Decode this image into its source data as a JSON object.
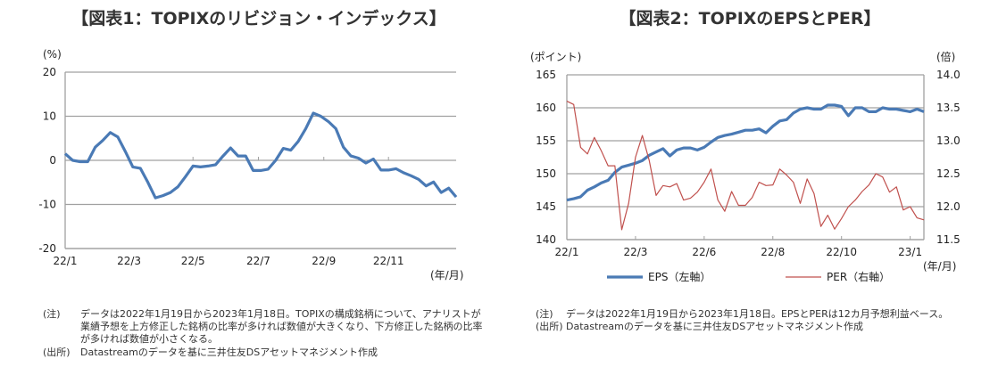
{
  "chart_data": [
    {
      "type": "line",
      "title": "【図表1：TOPIXのリビジョン・インデックス】",
      "ylabel": "(%)",
      "xlabel": "(年/月)",
      "ylim": [
        -20,
        20
      ],
      "yticks": [
        "20",
        "10",
        "0",
        "-10",
        "-20"
      ],
      "xtick_labels": [
        {
          "label": "22/1",
          "index": 0
        },
        {
          "label": "22/3",
          "index": 8.5
        },
        {
          "label": "22/5",
          "index": 17
        },
        {
          "label": "22/7",
          "index": 25.7
        },
        {
          "label": "22/9",
          "index": 34.4
        },
        {
          "label": "22/11",
          "index": 43
        }
      ],
      "grid": true,
      "series": [
        {
          "name": "リビジョン・インデックス",
          "color": "#4a7ab5",
          "values": [
            1.5,
            0,
            -0.3,
            -0.3,
            3,
            4.5,
            6.3,
            5.3,
            2,
            -1.5,
            -1.8,
            -5,
            -8.5,
            -8,
            -7.3,
            -6,
            -3.7,
            -1.3,
            -1.5,
            -1.3,
            -1,
            1,
            2.8,
            1,
            1,
            -2.3,
            -2.3,
            -2,
            0,
            2.7,
            2.3,
            4.3,
            7.2,
            10.7,
            10,
            8.8,
            7.2,
            3,
            1,
            0.5,
            -0.6,
            0.3,
            -2.2,
            -2.2,
            -1.9,
            -2.8,
            -3.5,
            -4.3,
            -5.8,
            -4.9,
            -7.3,
            -6.3,
            -8.3
          ]
        }
      ]
    },
    {
      "type": "line",
      "title": "【図表2：TOPIXのEPSとPER】",
      "ylabel": "(ポイント)",
      "y2label": "(倍)",
      "xlabel": "(年/月)",
      "ylim": [
        140,
        165
      ],
      "y2lim": [
        11.5,
        14.0
      ],
      "yticks": [
        "165",
        "160",
        "155",
        "150",
        "145",
        "140"
      ],
      "y2ticks": [
        "14.0",
        "13.5",
        "13.0",
        "12.5",
        "12.0",
        "11.5"
      ],
      "xtick_labels": [
        {
          "label": "22/1",
          "index": 0
        },
        {
          "label": "22/3",
          "index": 10
        },
        {
          "label": "22/6",
          "index": 20
        },
        {
          "label": "22/8",
          "index": 30
        },
        {
          "label": "22/10",
          "index": 40
        },
        {
          "label": "23/1",
          "index": 50
        }
      ],
      "grid": true,
      "legend_position": "bottom",
      "series": [
        {
          "name": "EPS（左軸）",
          "axis": "left",
          "color": "#4a7ab5",
          "values": [
            146,
            146.2,
            146.5,
            147.5,
            148,
            148.6,
            149,
            150.2,
            151,
            151.3,
            151.6,
            152,
            152.8,
            153.3,
            153.8,
            152.7,
            153.6,
            153.9,
            153.9,
            153.6,
            154,
            154.8,
            155.5,
            155.8,
            156,
            156.3,
            156.6,
            156.6,
            156.8,
            156.2,
            157.2,
            158,
            158.2,
            159.2,
            159.8,
            160,
            159.8,
            159.8,
            160.4,
            160.4,
            160.2,
            158.8,
            160,
            160,
            159.4,
            159.4,
            160,
            159.8,
            159.8,
            159.6,
            159.4,
            159.8,
            159.4
          ]
        },
        {
          "name": "PER（右軸）",
          "axis": "right",
          "color": "#c0504d",
          "values": [
            13.6,
            13.55,
            12.9,
            12.8,
            13.05,
            12.85,
            12.62,
            12.62,
            11.65,
            12.05,
            12.75,
            13.08,
            12.7,
            12.17,
            12.32,
            12.3,
            12.35,
            12.1,
            12.13,
            12.22,
            12.37,
            12.57,
            12.1,
            11.93,
            12.23,
            12.02,
            12.02,
            12.14,
            12.37,
            12.32,
            12.33,
            12.57,
            12.48,
            12.37,
            12.05,
            12.42,
            12.2,
            11.7,
            11.87,
            11.66,
            11.82,
            12.0,
            12.1,
            12.23,
            12.33,
            12.5,
            12.45,
            12.22,
            12.3,
            11.95,
            12.0,
            11.83,
            11.8
          ]
        }
      ]
    }
  ],
  "notes1": {
    "note_label": "(注)",
    "note_text": "データは2022年1月19日から2023年1月18日。TOPIXの構成銘柄について、アナリストが業績予想を上方修正した銘柄の比率が多ければ数値が大きくなり、下方修正した銘柄の比率が多ければ数値が小さくなる。",
    "source_label": "(出所)",
    "source_text": "Datastreamのデータを基に三井住友DSアセットマネジメント作成"
  },
  "notes2": {
    "note_label": "(注)",
    "note_text": "データは2022年1月19日から2023年1月18日。EPSとPERは12カ月予想利益ベース。",
    "source_label": "(出所)",
    "source_text": "Datastreamのデータを基に三井住友DSアセットマネジメント作成"
  }
}
